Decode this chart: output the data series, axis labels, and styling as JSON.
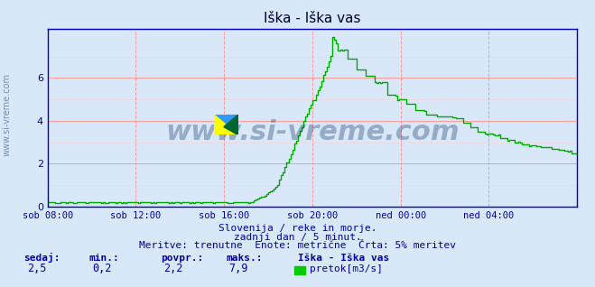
{
  "title": "Iška - Iška vas",
  "bg_color": "#d8e8f8",
  "plot_bg_color": "#d8e8f8",
  "line_color": "#00aa00",
  "grid_color_major": "#ff9999",
  "grid_color_minor": "#ffcccc",
  "axis_color": "#0000cc",
  "title_color": "#000033",
  "text_color": "#0000aa",
  "watermark_color": "#1a3a6a",
  "ylabel_text": "www.si-vreme.com",
  "x_tick_labels": [
    "sob 08:00",
    "sob 12:00",
    "sob 16:00",
    "sob 20:00",
    "ned 00:00",
    "ned 04:00"
  ],
  "x_tick_positions": [
    0,
    48,
    96,
    144,
    192,
    240
  ],
  "y_ticks": [
    0,
    2,
    4,
    6
  ],
  "ylim": [
    0,
    8.3
  ],
  "xlim": [
    0,
    288
  ],
  "subtitle_line1": "Slovenija / reke in morje.",
  "subtitle_line2": "zadnji dan / 5 minut.",
  "subtitle_line3": "Meritve: trenutne  Enote: metrične  Črta: 5% meritev",
  "stats_labels": [
    "sedaj:",
    "min.:",
    "povpr.:",
    "maks.:"
  ],
  "stats_values": [
    "2,5",
    "0,2",
    "2,2",
    "7,9"
  ],
  "legend_label": "Iška - Iška vas",
  "legend_series": "pretok[m3/s]",
  "legend_color": "#00cc00"
}
